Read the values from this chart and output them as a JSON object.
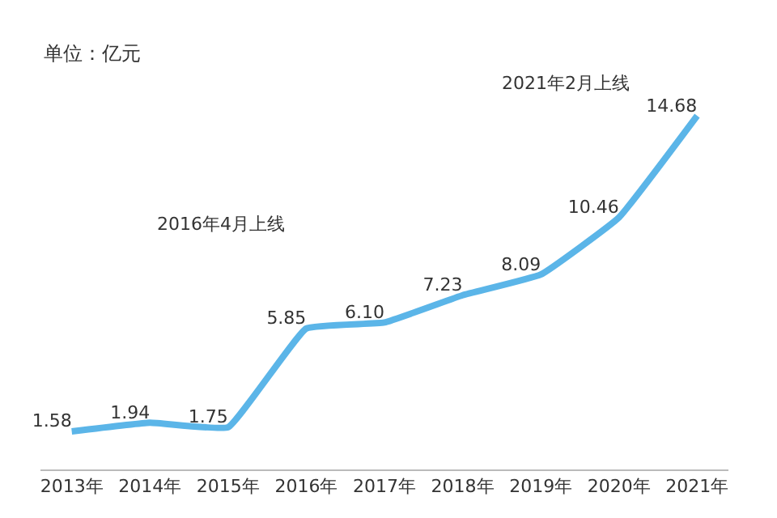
{
  "chart_data": {
    "type": "line",
    "categories": [
      "2013年",
      "2014年",
      "2015年",
      "2016年",
      "2017年",
      "2018年",
      "2019年",
      "2020年",
      "2021年"
    ],
    "values": [
      1.58,
      1.94,
      1.75,
      5.85,
      6.1,
      7.23,
      8.09,
      10.46,
      14.68
    ],
    "color": "#5bb5e8",
    "value_labels": [
      "1.58",
      "1.94",
      "1.75",
      "5.85",
      "6.10",
      "7.23",
      "8.09",
      "10.46",
      "14.68"
    ],
    "annotations": [
      "单位：亿元",
      "2016年4月上线",
      "2021年2月上线"
    ]
  }
}
